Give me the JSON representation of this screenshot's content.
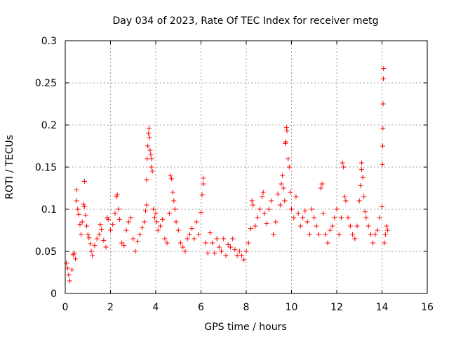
{
  "chart_data": {
    "type": "scatter",
    "title": "Day 034 of 2023, Rate Of TEC Index for receiver metg",
    "xlabel": "GPS time / hours",
    "ylabel": "ROTI / TECUs",
    "xlim": [
      0,
      16
    ],
    "ylim": [
      0,
      0.3
    ],
    "xticks": [
      0,
      2,
      4,
      6,
      8,
      10,
      12,
      14,
      16
    ],
    "xtick_labels": [
      "0",
      "2",
      "4",
      "6",
      "8",
      "10",
      "12",
      "14",
      "16"
    ],
    "yticks": [
      0,
      0.05,
      0.1,
      0.15,
      0.2,
      0.25,
      0.3
    ],
    "ytick_labels": [
      "0",
      "0.05",
      "0.1",
      "0.15",
      "0.2",
      "0.25",
      "0.3"
    ],
    "grid": true,
    "marker": "plus",
    "color": "#ff0000",
    "series": [
      {
        "name": "ROTI",
        "points": [
          [
            0.05,
            0.036
          ],
          [
            0.1,
            0.03
          ],
          [
            0.15,
            0.022
          ],
          [
            0.2,
            0.015
          ],
          [
            0.3,
            0.028
          ],
          [
            0.35,
            0.046
          ],
          [
            0.4,
            0.048
          ],
          [
            0.45,
            0.041
          ],
          [
            0.5,
            0.11
          ],
          [
            0.5,
            0.123
          ],
          [
            0.55,
            0.1
          ],
          [
            0.6,
            0.094
          ],
          [
            0.65,
            0.082
          ],
          [
            0.7,
            0.07
          ],
          [
            0.75,
            0.085
          ],
          [
            0.8,
            0.106
          ],
          [
            0.85,
            0.103
          ],
          [
            0.85,
            0.133
          ],
          [
            0.9,
            0.093
          ],
          [
            0.95,
            0.08
          ],
          [
            1.0,
            0.07
          ],
          [
            1.05,
            0.066
          ],
          [
            1.1,
            0.059
          ],
          [
            1.15,
            0.05
          ],
          [
            1.2,
            0.045
          ],
          [
            1.3,
            0.057
          ],
          [
            1.4,
            0.065
          ],
          [
            1.5,
            0.07
          ],
          [
            1.55,
            0.082
          ],
          [
            1.6,
            0.076
          ],
          [
            1.7,
            0.063
          ],
          [
            1.8,
            0.055
          ],
          [
            1.85,
            0.09
          ],
          [
            1.9,
            0.088
          ],
          [
            2.0,
            0.075
          ],
          [
            2.1,
            0.082
          ],
          [
            2.2,
            0.095
          ],
          [
            2.25,
            0.115
          ],
          [
            2.3,
            0.117
          ],
          [
            2.35,
            0.1
          ],
          [
            2.4,
            0.088
          ],
          [
            2.5,
            0.06
          ],
          [
            2.6,
            0.057
          ],
          [
            2.7,
            0.075
          ],
          [
            2.8,
            0.085
          ],
          [
            2.9,
            0.09
          ],
          [
            3.0,
            0.065
          ],
          [
            3.1,
            0.05
          ],
          [
            3.2,
            0.062
          ],
          [
            3.3,
            0.07
          ],
          [
            3.4,
            0.078
          ],
          [
            3.5,
            0.085
          ],
          [
            3.55,
            0.098
          ],
          [
            3.6,
            0.105
          ],
          [
            3.6,
            0.135
          ],
          [
            3.62,
            0.16
          ],
          [
            3.65,
            0.175
          ],
          [
            3.68,
            0.19
          ],
          [
            3.7,
            0.196
          ],
          [
            3.72,
            0.185
          ],
          [
            3.75,
            0.17
          ],
          [
            3.78,
            0.165
          ],
          [
            3.8,
            0.15
          ],
          [
            3.82,
            0.16
          ],
          [
            3.85,
            0.145
          ],
          [
            3.9,
            0.1
          ],
          [
            3.95,
            0.09
          ],
          [
            4.0,
            0.095
          ],
          [
            4.05,
            0.085
          ],
          [
            4.1,
            0.075
          ],
          [
            4.2,
            0.08
          ],
          [
            4.3,
            0.088
          ],
          [
            4.4,
            0.065
          ],
          [
            4.5,
            0.06
          ],
          [
            4.6,
            0.095
          ],
          [
            4.65,
            0.14
          ],
          [
            4.7,
            0.136
          ],
          [
            4.75,
            0.12
          ],
          [
            4.8,
            0.11
          ],
          [
            4.85,
            0.1
          ],
          [
            4.9,
            0.085
          ],
          [
            5.0,
            0.075
          ],
          [
            5.1,
            0.06
          ],
          [
            5.2,
            0.055
          ],
          [
            5.3,
            0.05
          ],
          [
            5.4,
            0.065
          ],
          [
            5.5,
            0.07
          ],
          [
            5.6,
            0.077
          ],
          [
            5.7,
            0.065
          ],
          [
            5.8,
            0.085
          ],
          [
            5.9,
            0.07
          ],
          [
            6.0,
            0.096
          ],
          [
            6.05,
            0.117
          ],
          [
            6.1,
            0.13
          ],
          [
            6.1,
            0.137
          ],
          [
            6.2,
            0.06
          ],
          [
            6.3,
            0.048
          ],
          [
            6.4,
            0.072
          ],
          [
            6.5,
            0.06
          ],
          [
            6.6,
            0.048
          ],
          [
            6.7,
            0.065
          ],
          [
            6.8,
            0.055
          ],
          [
            6.9,
            0.05
          ],
          [
            7.0,
            0.065
          ],
          [
            7.1,
            0.045
          ],
          [
            7.2,
            0.058
          ],
          [
            7.3,
            0.055
          ],
          [
            7.4,
            0.065
          ],
          [
            7.5,
            0.052
          ],
          [
            7.6,
            0.045
          ],
          [
            7.7,
            0.05
          ],
          [
            7.8,
            0.045
          ],
          [
            7.9,
            0.04
          ],
          [
            8.0,
            0.05
          ],
          [
            8.1,
            0.06
          ],
          [
            8.2,
            0.077
          ],
          [
            8.25,
            0.11
          ],
          [
            8.3,
            0.105
          ],
          [
            8.4,
            0.08
          ],
          [
            8.5,
            0.09
          ],
          [
            8.6,
            0.1
          ],
          [
            8.7,
            0.115
          ],
          [
            8.75,
            0.12
          ],
          [
            8.8,
            0.095
          ],
          [
            8.9,
            0.083
          ],
          [
            9.0,
            0.1
          ],
          [
            9.1,
            0.11
          ],
          [
            9.2,
            0.07
          ],
          [
            9.3,
            0.085
          ],
          [
            9.4,
            0.118
          ],
          [
            9.5,
            0.105
          ],
          [
            9.55,
            0.13
          ],
          [
            9.6,
            0.14
          ],
          [
            9.65,
            0.125
          ],
          [
            9.7,
            0.11
          ],
          [
            9.72,
            0.178
          ],
          [
            9.75,
            0.18
          ],
          [
            9.78,
            0.197
          ],
          [
            9.8,
            0.193
          ],
          [
            9.85,
            0.16
          ],
          [
            9.9,
            0.15
          ],
          [
            9.95,
            0.12
          ],
          [
            10.0,
            0.1
          ],
          [
            10.1,
            0.09
          ],
          [
            10.2,
            0.115
          ],
          [
            10.3,
            0.095
          ],
          [
            10.4,
            0.08
          ],
          [
            10.5,
            0.09
          ],
          [
            10.6,
            0.098
          ],
          [
            10.7,
            0.085
          ],
          [
            10.8,
            0.07
          ],
          [
            10.9,
            0.1
          ],
          [
            11.0,
            0.09
          ],
          [
            11.1,
            0.08
          ],
          [
            11.2,
            0.07
          ],
          [
            11.3,
            0.125
          ],
          [
            11.35,
            0.13
          ],
          [
            11.4,
            0.095
          ],
          [
            11.5,
            0.07
          ],
          [
            11.6,
            0.06
          ],
          [
            11.7,
            0.075
          ],
          [
            11.8,
            0.08
          ],
          [
            11.9,
            0.09
          ],
          [
            12.0,
            0.1
          ],
          [
            12.1,
            0.07
          ],
          [
            12.2,
            0.09
          ],
          [
            12.25,
            0.155
          ],
          [
            12.3,
            0.15
          ],
          [
            12.35,
            0.115
          ],
          [
            12.4,
            0.11
          ],
          [
            12.5,
            0.09
          ],
          [
            12.6,
            0.08
          ],
          [
            12.7,
            0.07
          ],
          [
            12.8,
            0.065
          ],
          [
            12.9,
            0.08
          ],
          [
            13.0,
            0.11
          ],
          [
            13.05,
            0.128
          ],
          [
            13.1,
            0.147
          ],
          [
            13.1,
            0.155
          ],
          [
            13.15,
            0.138
          ],
          [
            13.2,
            0.115
          ],
          [
            13.25,
            0.097
          ],
          [
            13.3,
            0.09
          ],
          [
            13.4,
            0.08
          ],
          [
            13.5,
            0.07
          ],
          [
            13.6,
            0.06
          ],
          [
            13.7,
            0.07
          ],
          [
            13.8,
            0.075
          ],
          [
            13.9,
            0.09
          ],
          [
            14.0,
            0.103
          ],
          [
            14.02,
            0.153
          ],
          [
            14.03,
            0.175
          ],
          [
            14.04,
            0.196
          ],
          [
            14.05,
            0.225
          ],
          [
            14.06,
            0.255
          ],
          [
            14.07,
            0.267
          ],
          [
            14.1,
            0.06
          ],
          [
            14.15,
            0.07
          ],
          [
            14.2,
            0.08
          ],
          [
            14.25,
            0.075
          ]
        ]
      }
    ]
  }
}
